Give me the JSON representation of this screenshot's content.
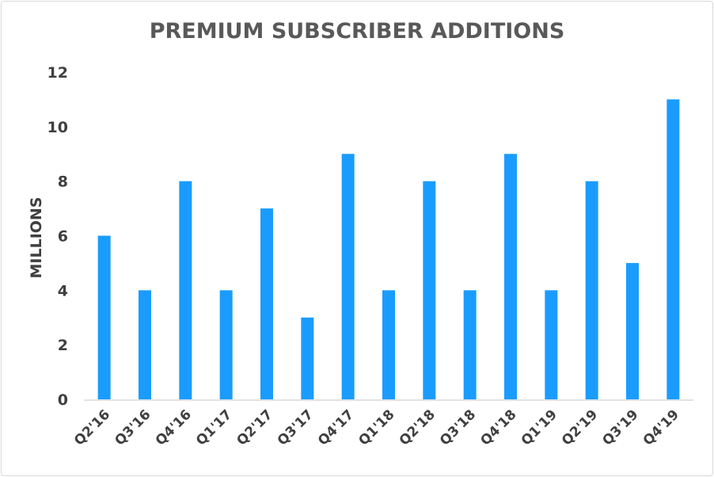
{
  "chart_data": {
    "type": "bar",
    "title": "PREMIUM SUBSCRIBER ADDITIONS",
    "xlabel": "",
    "ylabel": "MILLIONS",
    "ylim": [
      0,
      12
    ],
    "yticks": [
      0,
      2,
      4,
      6,
      8,
      10,
      12
    ],
    "grid": false,
    "legend": "none",
    "categories": [
      "Q2'16",
      "Q3'16",
      "Q4'16",
      "Q1'17",
      "Q2'17",
      "Q3'17",
      "Q4'17",
      "Q1'18",
      "Q2'18",
      "Q3'18",
      "Q4'18",
      "Q1'19",
      "Q2'19",
      "Q3'19",
      "Q4'19"
    ],
    "values": [
      6,
      4,
      8,
      4,
      7,
      3,
      9,
      4,
      8,
      4,
      9,
      4,
      8,
      5,
      11
    ],
    "colors": {
      "bar": "#1a9cff",
      "axis": "#d9d9d9",
      "text": "#3f3f3f",
      "title": "#595959"
    }
  }
}
